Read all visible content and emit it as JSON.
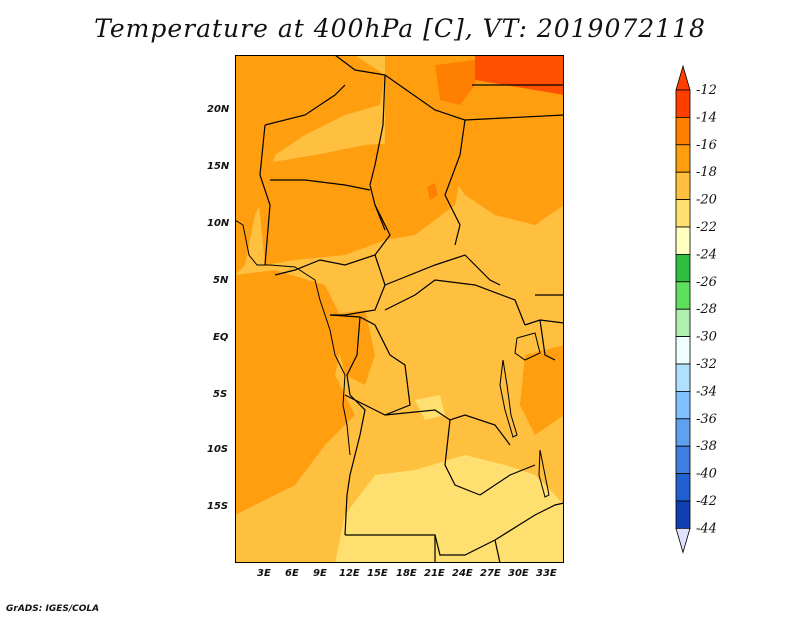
{
  "title": "Temperature at 400hPa [C], VT: 2019072118",
  "credit": "GrADS: IGES/COLA",
  "map": {
    "variable": "Temperature at 400hPa",
    "units": "C",
    "valid_time": "2019072118",
    "lat_ticks": [
      "20N",
      "15N",
      "10N",
      "5N",
      "EQ",
      "5S",
      "10S",
      "15S"
    ],
    "lon_ticks": [
      "3E",
      "6E",
      "9E",
      "12E",
      "15E",
      "18E",
      "21E",
      "24E",
      "27E",
      "30E",
      "33E"
    ]
  },
  "legend": {
    "levels": [
      "-12",
      "-14",
      "-16",
      "-18",
      "-20",
      "-22",
      "-24",
      "-26",
      "-28",
      "-30",
      "-32",
      "-34",
      "-36",
      "-38",
      "-40",
      "-42",
      "-44"
    ],
    "colors": [
      "#ff3f00",
      "#ff7f00",
      "#ff9f10",
      "#ffbf3f",
      "#ffdf70",
      "#ffffbf",
      "#2fbf3f",
      "#5fdf5f",
      "#afefaf",
      "#efffff",
      "#afe0ff",
      "#7fc0ff",
      "#5fa0ef",
      "#3f7fdf",
      "#2060cf",
      "#1040af",
      "#08147f"
    ],
    "top_arrow_color": "#ff3f00",
    "bottom_arrow_color": "#e0e0ff"
  },
  "palette": {
    "very_warm": "#ff7f00",
    "warm": "#ff9f10",
    "moderate": "#ffbf3f",
    "mild": "#ffdf70",
    "hot": "#ff5000"
  }
}
